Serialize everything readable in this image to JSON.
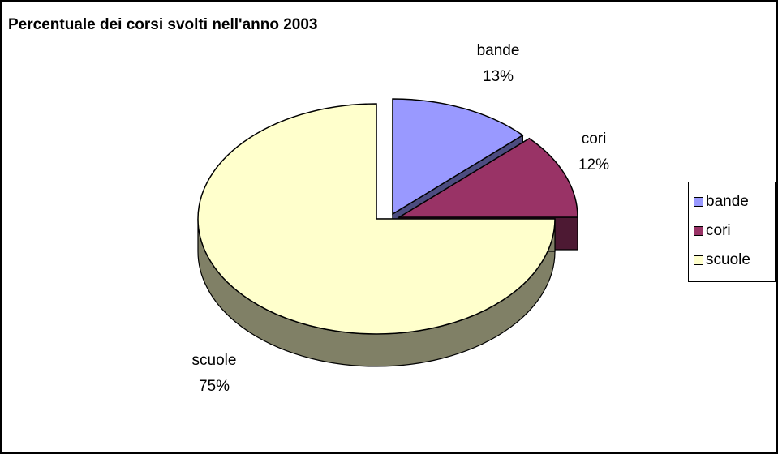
{
  "chart_data": {
    "type": "pie",
    "title": "Percentuale dei corsi svolti nell'anno 2003",
    "categories": [
      "bande",
      "cori",
      "scuole"
    ],
    "values": [
      13,
      12,
      75
    ],
    "labels": [
      "13%",
      "12%",
      "75%"
    ],
    "exploded": true,
    "three_d": true,
    "legend_position": "right",
    "colors": {
      "bande": {
        "top": "#9999ff",
        "side": "#4c4c80"
      },
      "cori": {
        "top": "#993366",
        "side": "#4d1933"
      },
      "scuole": {
        "top": "#ffffcc",
        "side": "#808066"
      }
    }
  }
}
